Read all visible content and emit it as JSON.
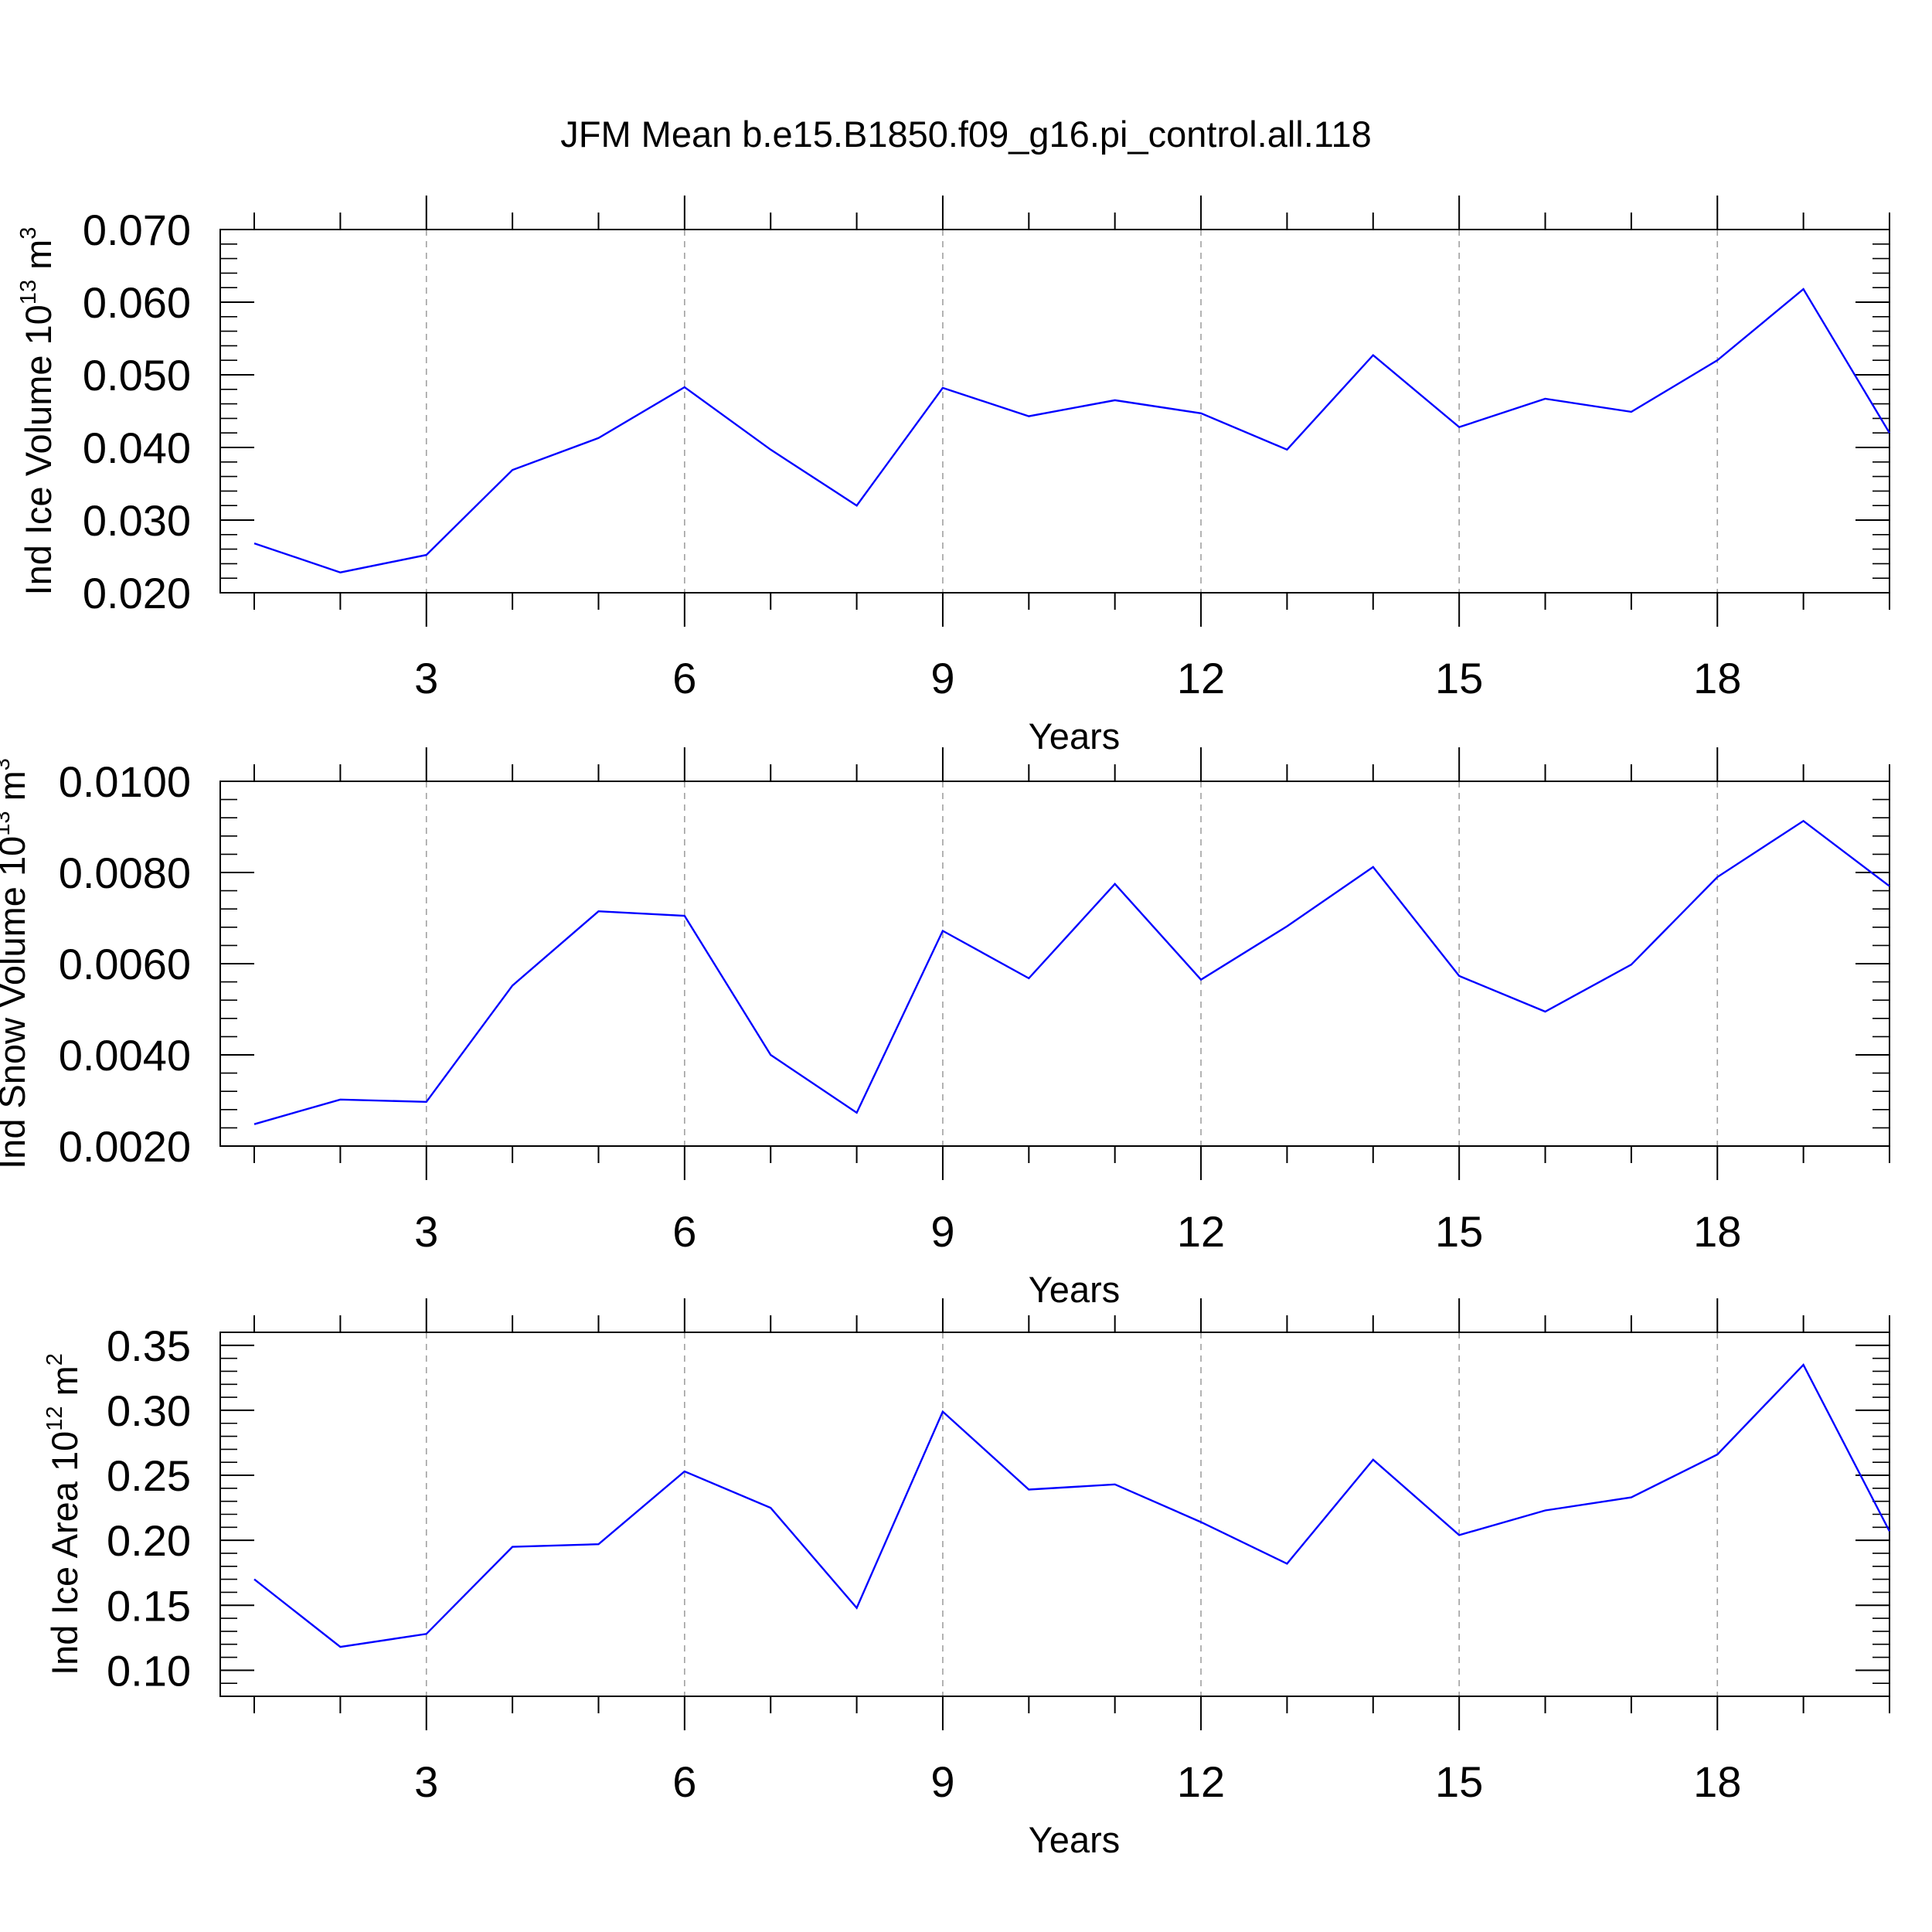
{
  "title": "JFM Mean b.e15.B1850.f09_g16.pi_control.all.118",
  "colors": {
    "line": "#0000ff",
    "axis": "#000000",
    "grid": "#a0a0a0"
  },
  "chart_data": [
    {
      "type": "line",
      "ylabel": {
        "text": "Ind Ice Volume 10",
        "exponent": "13",
        "unit": " m",
        "unit_exponent": "3"
      },
      "xlabel": "Years",
      "xlim": [
        1,
        20
      ],
      "ylim": [
        0.02,
        0.07
      ],
      "x_ticks": [
        3,
        6,
        9,
        12,
        15,
        18
      ],
      "x_tick_labels": [
        "3",
        "6",
        "9",
        "12",
        "15",
        "18"
      ],
      "y_ticks": [
        0.02,
        0.03,
        0.04,
        0.05,
        0.06,
        0.07
      ],
      "y_tick_labels": [
        "0.020",
        "0.030",
        "0.040",
        "0.050",
        "0.060",
        "0.070"
      ],
      "grid": "vertical dashed",
      "x": [
        1,
        2,
        3,
        4,
        5,
        6,
        7,
        8,
        9,
        10,
        11,
        12,
        13,
        14,
        15,
        16,
        17,
        18,
        19,
        20
      ],
      "values": [
        0.0268,
        0.0228,
        0.0252,
        0.0369,
        0.0413,
        0.0483,
        0.0397,
        0.032,
        0.0482,
        0.0443,
        0.0465,
        0.0447,
        0.0397,
        0.0527,
        0.0428,
        0.0467,
        0.0449,
        0.052,
        0.0618,
        0.042
      ]
    },
    {
      "type": "line",
      "ylabel": {
        "text": "Ind Snow Volume 10",
        "exponent": "13",
        "unit": " m",
        "unit_exponent": "3"
      },
      "xlabel": "Years",
      "xlim": [
        1,
        20
      ],
      "ylim": [
        0.002,
        0.01
      ],
      "x_ticks": [
        3,
        6,
        9,
        12,
        15,
        18
      ],
      "x_tick_labels": [
        "3",
        "6",
        "9",
        "12",
        "15",
        "18"
      ],
      "y_ticks": [
        0.002,
        0.004,
        0.006,
        0.008,
        0.01
      ],
      "y_tick_labels": [
        "0.0020",
        "0.0040",
        "0.0060",
        "0.0080",
        "0.0100"
      ],
      "grid": "vertical dashed",
      "x": [
        1,
        2,
        3,
        4,
        5,
        6,
        7,
        8,
        9,
        10,
        11,
        12,
        13,
        14,
        15,
        16,
        17,
        18,
        19,
        20
      ],
      "values": [
        0.00248,
        0.00302,
        0.00297,
        0.00552,
        0.00715,
        0.00705,
        0.004,
        0.00273,
        0.00672,
        0.00568,
        0.00775,
        0.00565,
        0.00682,
        0.00812,
        0.00573,
        0.00495,
        0.00598,
        0.0079,
        0.00913,
        0.0077
      ]
    },
    {
      "type": "line",
      "ylabel": {
        "text": "Ind Ice Area 10",
        "exponent": "12",
        "unit": " m",
        "unit_exponent": "2"
      },
      "xlabel": "Years",
      "xlim": [
        1,
        20
      ],
      "ylim": [
        0.08,
        0.36
      ],
      "x_ticks": [
        3,
        6,
        9,
        12,
        15,
        18
      ],
      "x_tick_labels": [
        "3",
        "6",
        "9",
        "12",
        "15",
        "18"
      ],
      "y_ticks": [
        0.1,
        0.15,
        0.2,
        0.25,
        0.3,
        0.35
      ],
      "y_tick_labels": [
        "0.10",
        "0.15",
        "0.20",
        "0.25",
        "0.30",
        "0.35"
      ],
      "grid": "vertical dashed",
      "x": [
        1,
        2,
        3,
        4,
        5,
        6,
        7,
        8,
        9,
        10,
        11,
        12,
        13,
        14,
        15,
        16,
        17,
        18,
        19,
        20
      ],
      "values": [
        0.17,
        0.118,
        0.128,
        0.195,
        0.197,
        0.253,
        0.225,
        0.148,
        0.299,
        0.239,
        0.243,
        0.214,
        0.182,
        0.262,
        0.204,
        0.223,
        0.233,
        0.266,
        0.335,
        0.207
      ]
    }
  ]
}
